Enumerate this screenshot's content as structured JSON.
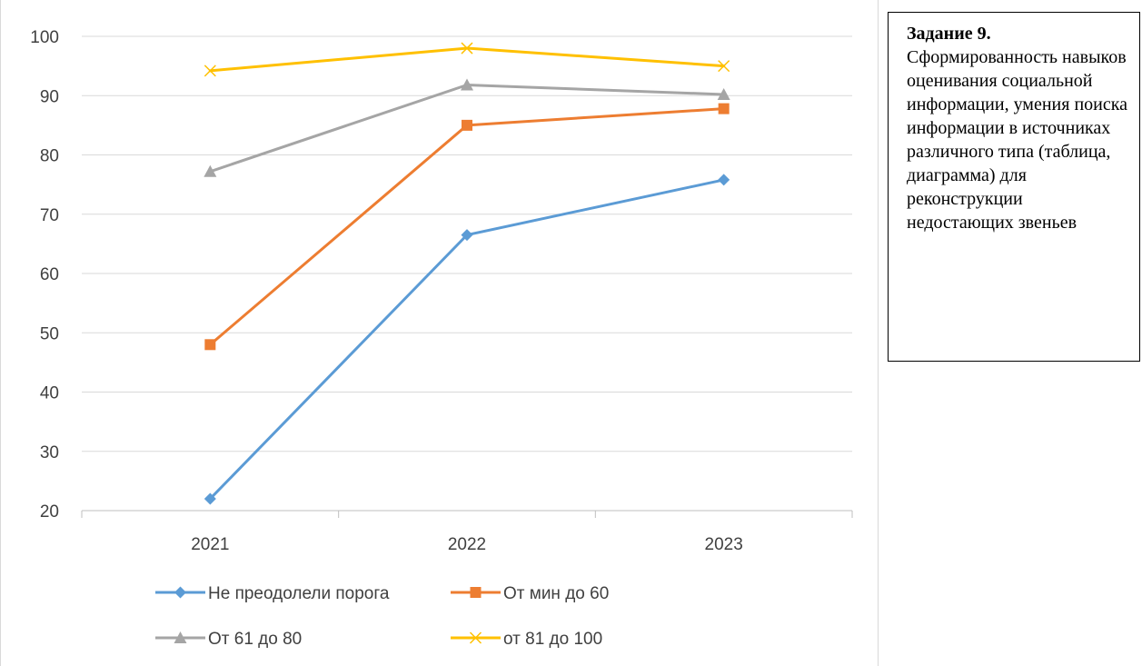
{
  "chart_data": {
    "type": "line",
    "categories": [
      "2021",
      "2022",
      "2023"
    ],
    "ylim": [
      20,
      100
    ],
    "yticks": [
      20,
      30,
      40,
      50,
      60,
      70,
      80,
      90,
      100
    ],
    "grid": true,
    "legend_position": "bottom",
    "series": [
      {
        "name": "Не преодолели порога",
        "values": [
          22,
          66.5,
          75.8
        ],
        "color": "#5b9bd5",
        "marker": "diamond"
      },
      {
        "name": "От мин до 60",
        "values": [
          48,
          85,
          87.8
        ],
        "color": "#ed7d31",
        "marker": "square"
      },
      {
        "name": "От 61 до 80",
        "values": [
          77.2,
          91.8,
          90.2
        ],
        "color": "#a5a5a5",
        "marker": "triangle"
      },
      {
        "name": "от 81 до 100",
        "values": [
          94.2,
          98,
          95
        ],
        "color": "#ffc000",
        "marker": "x"
      }
    ]
  },
  "task": {
    "title": "Задание 9.",
    "text": "Сформированность навыков оценивания социальной информации, умения поиска информации в источниках различного типа (таблица, диаграмма) для реконструкции недостающих звеньев"
  }
}
